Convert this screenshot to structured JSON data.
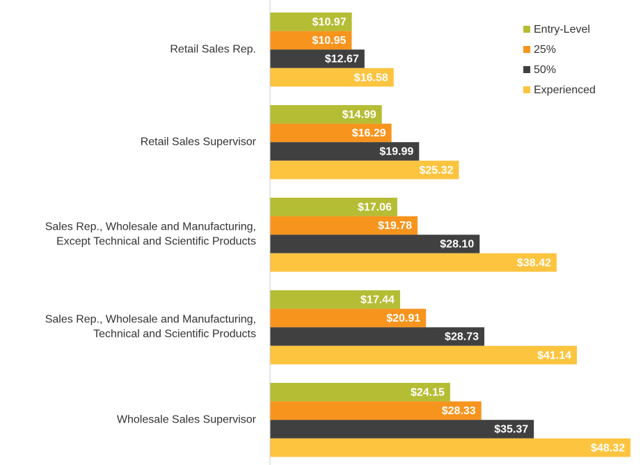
{
  "chart_data": {
    "type": "bar",
    "orientation": "horizontal",
    "categories": [
      "Retail Sales Rep.",
      "Retail Sales Supervisor",
      "Sales Rep., Wholesale and Manufacturing,\nExcept Technical and Scientific Products",
      "Sales Rep., Wholesale and Manufacturing,\nTechnical and Scientific Products",
      "Wholesale Sales Supervisor"
    ],
    "series": [
      {
        "name": "Entry-Level",
        "color": "#b5bd35",
        "values": [
          10.97,
          14.99,
          17.06,
          17.44,
          24.15
        ],
        "value_labels": [
          "$10.97",
          "$14.99",
          "$17.06",
          "$17.44",
          "$24.15"
        ]
      },
      {
        "name": "25%",
        "color": "#f7941d",
        "values": [
          10.95,
          16.29,
          19.78,
          20.91,
          28.33
        ],
        "value_labels": [
          "$10.95",
          "$16.29",
          "$19.78",
          "$20.91",
          "$28.33"
        ]
      },
      {
        "name": "50%",
        "color": "#404040",
        "values": [
          12.67,
          19.99,
          28.1,
          28.73,
          35.37
        ],
        "value_labels": [
          "$12.67",
          "$19.99",
          "$28.10",
          "$28.73",
          "$35.37"
        ]
      },
      {
        "name": "Experienced",
        "color": "#fcc43f",
        "values": [
          16.58,
          25.32,
          38.42,
          41.14,
          48.32
        ],
        "value_labels": [
          "$16.58",
          "$25.32",
          "$38.42",
          "$41.14",
          "$48.32"
        ]
      }
    ],
    "xlim": [
      0,
      50
    ],
    "legend": "upper right"
  }
}
